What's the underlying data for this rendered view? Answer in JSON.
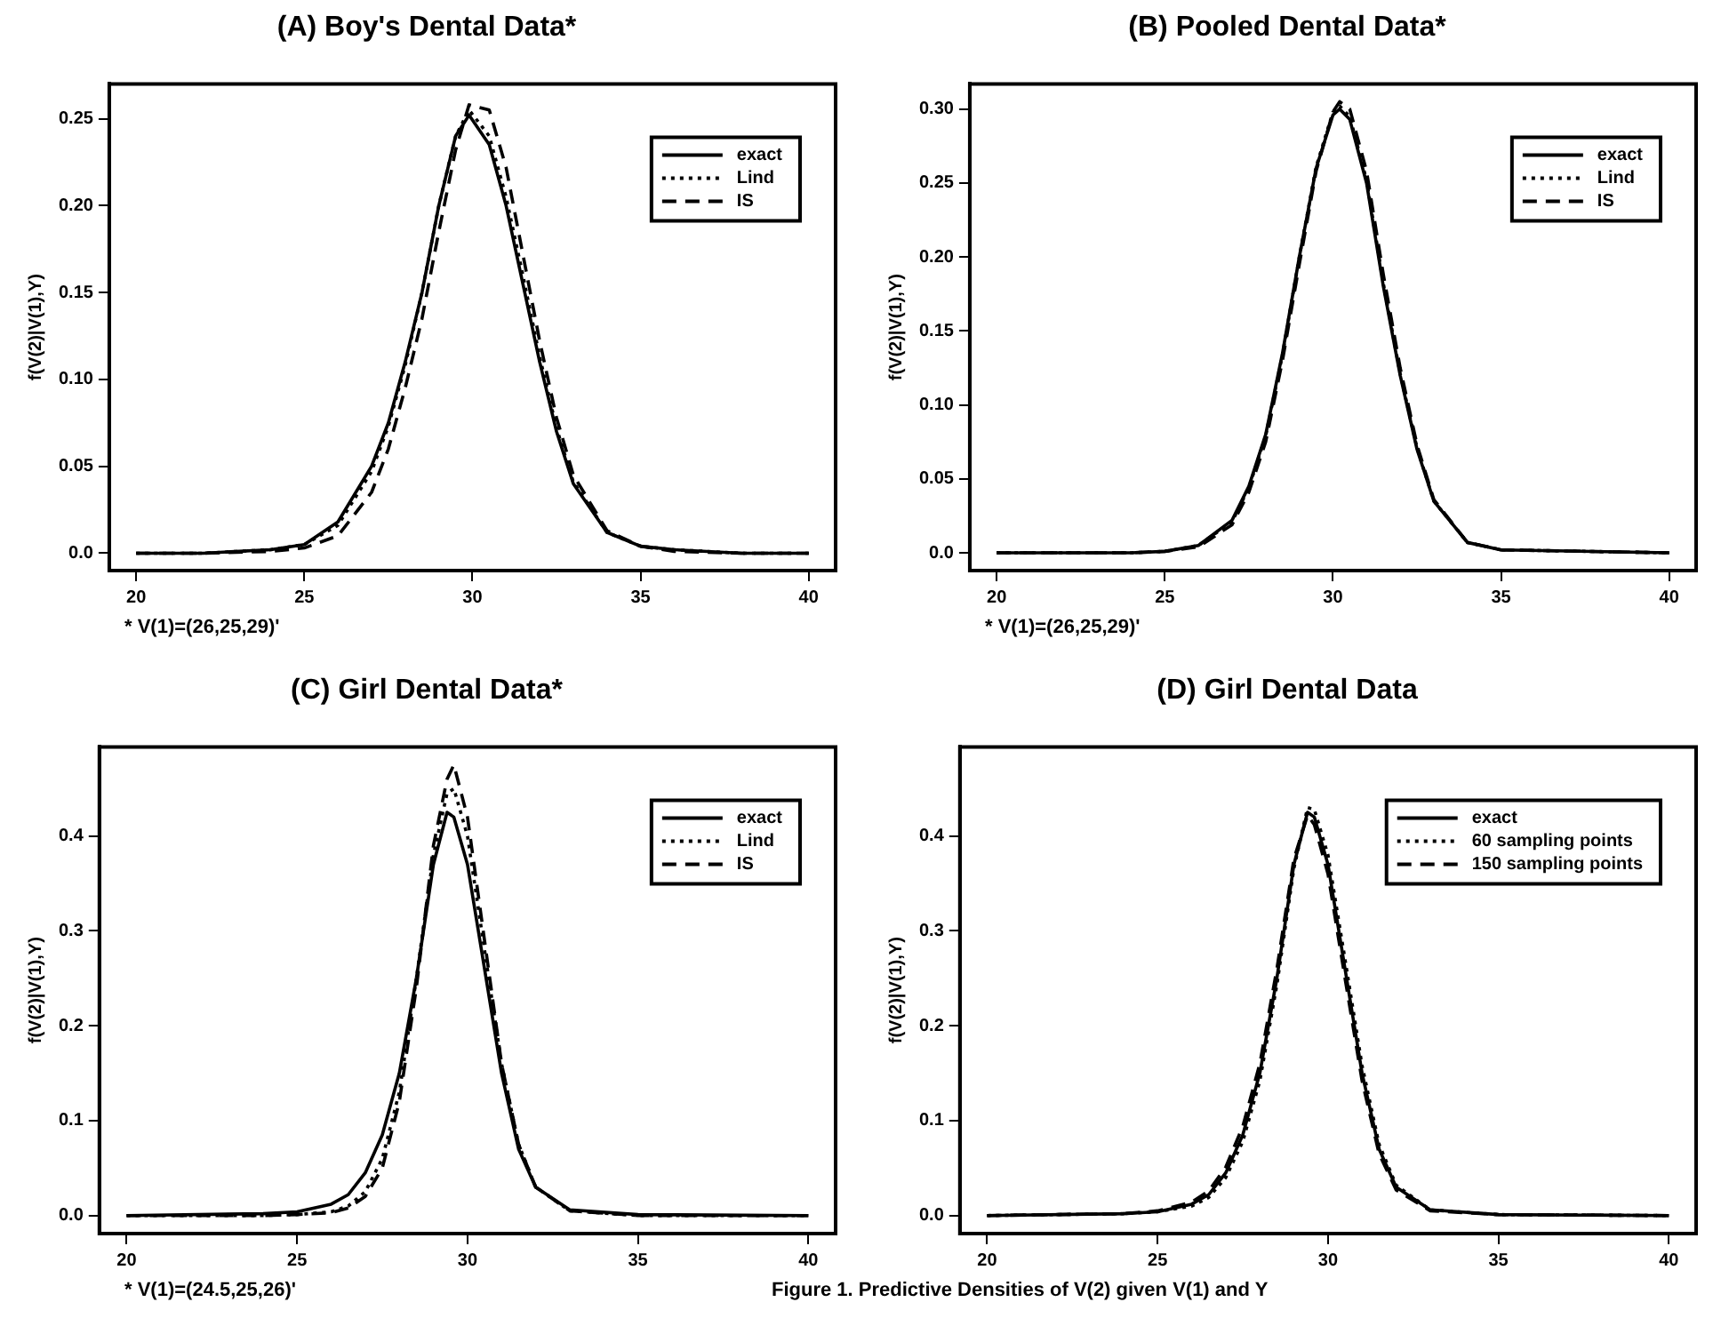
{
  "chart_data": [
    {
      "type": "line",
      "title": "(A) Boy's Dental Data*",
      "ylabel": "f(V(2)|V(1),Y)",
      "annotations": [
        "* V(1)=(26,25,29)'"
      ],
      "legend": "top right",
      "grid": false,
      "marker": "none",
      "x": [
        20,
        22,
        24,
        25,
        26,
        27,
        27.5,
        28,
        28.5,
        29,
        29.5,
        29.9,
        30.5,
        31,
        31.5,
        32,
        32.5,
        33,
        34,
        35,
        36,
        38,
        40
      ],
      "xlim": [
        19.2,
        40.8
      ],
      "xticks": [
        20,
        25,
        30,
        35,
        40
      ],
      "ylim": [
        -0.01,
        0.27
      ],
      "yticks": [
        {
          "value": 0,
          "label": "0.0"
        },
        0.05,
        {
          "value": 0.1,
          "label": "0.10"
        },
        0.15,
        {
          "value": 0.2,
          "label": "0.20"
        },
        0.25
      ],
      "series": [
        {
          "name": "exact",
          "color": "#000000",
          "line_style": "solid",
          "values": [
            0,
            0,
            0.002,
            0.005,
            0.018,
            0.05,
            0.075,
            0.11,
            0.15,
            0.2,
            0.24,
            0.252,
            0.235,
            0.2,
            0.155,
            0.11,
            0.07,
            0.04,
            0.012,
            0.004,
            0.002,
            0,
            0
          ]
        },
        {
          "name": "Lind",
          "color": "#000000",
          "line_style": "dotted",
          "values": [
            0,
            0,
            0.002,
            0.005,
            0.016,
            0.047,
            0.073,
            0.108,
            0.15,
            0.2,
            0.24,
            0.255,
            0.24,
            0.205,
            0.16,
            0.113,
            0.072,
            0.041,
            0.012,
            0.004,
            0.002,
            0,
            0
          ]
        },
        {
          "name": "IS",
          "color": "#000000",
          "line_style": "dashed",
          "values": [
            0,
            0,
            0.001,
            0.003,
            0.01,
            0.035,
            0.06,
            0.095,
            0.135,
            0.185,
            0.232,
            0.258,
            0.255,
            0.222,
            0.172,
            0.122,
            0.078,
            0.045,
            0.013,
            0.004,
            0.001,
            0,
            0
          ]
        }
      ]
    },
    {
      "type": "line",
      "title": "(B) Pooled Dental Data*",
      "ylabel": "f(V(2)|V(1),Y)",
      "annotations": [
        "* V(1)=(26,25,29)'"
      ],
      "legend": "top right",
      "grid": false,
      "marker": "none",
      "x": [
        20,
        24,
        25,
        26,
        27,
        27.5,
        28,
        28.5,
        29,
        29.5,
        30,
        30.2,
        30.5,
        31,
        31.5,
        32,
        32.5,
        33,
        34,
        35,
        40
      ],
      "xlim": [
        19.2,
        40.8
      ],
      "xticks": [
        20,
        25,
        30,
        35,
        40
      ],
      "ylim": [
        -0.012,
        0.317
      ],
      "yticks": [
        {
          "value": 0,
          "label": "0.0"
        },
        0.05,
        {
          "value": 0.1,
          "label": "0.10"
        },
        0.15,
        {
          "value": 0.2,
          "label": "0.20"
        },
        0.25,
        {
          "value": 0.3,
          "label": "0.30"
        }
      ],
      "series": [
        {
          "name": "exact",
          "color": "#000000",
          "line_style": "solid",
          "values": [
            0,
            0,
            0.001,
            0.005,
            0.022,
            0.045,
            0.08,
            0.135,
            0.2,
            0.26,
            0.296,
            0.3,
            0.293,
            0.25,
            0.18,
            0.12,
            0.07,
            0.035,
            0.007,
            0.002,
            0
          ]
        },
        {
          "name": "Lind",
          "color": "#000000",
          "line_style": "dotted",
          "values": [
            0,
            0,
            0.001,
            0.005,
            0.021,
            0.044,
            0.079,
            0.134,
            0.2,
            0.261,
            0.298,
            0.302,
            0.295,
            0.252,
            0.182,
            0.121,
            0.071,
            0.035,
            0.007,
            0.002,
            0
          ]
        },
        {
          "name": "IS",
          "color": "#000000",
          "line_style": "dashed",
          "values": [
            0,
            0,
            0.001,
            0.004,
            0.019,
            0.041,
            0.075,
            0.13,
            0.195,
            0.258,
            0.298,
            0.305,
            0.3,
            0.258,
            0.188,
            0.125,
            0.073,
            0.036,
            0.007,
            0.002,
            0
          ]
        }
      ]
    },
    {
      "type": "line",
      "title": "(C) Girl Dental Data*",
      "ylabel": "f(V(2)|V(1),Y)",
      "annotations": [
        "* V(1)=(24.5,25,26)'"
      ],
      "legend": "top right",
      "grid": false,
      "marker": "none",
      "x": [
        20,
        24,
        25,
        26,
        26.5,
        27,
        27.5,
        28,
        28.5,
        29,
        29.4,
        29.6,
        30,
        30.5,
        31,
        31.5,
        32,
        33,
        35,
        40
      ],
      "xlim": [
        19.2,
        40.8
      ],
      "xticks": [
        20,
        25,
        30,
        35,
        40
      ],
      "ylim": [
        -0.019,
        0.494
      ],
      "yticks": [
        {
          "value": 0,
          "label": "0.0"
        },
        0.1,
        0.2,
        0.3,
        0.4
      ],
      "series": [
        {
          "name": "exact",
          "color": "#000000",
          "line_style": "solid",
          "values": [
            0,
            0.002,
            0.004,
            0.012,
            0.022,
            0.045,
            0.085,
            0.15,
            0.25,
            0.37,
            0.425,
            0.42,
            0.37,
            0.26,
            0.15,
            0.07,
            0.03,
            0.006,
            0.001,
            0
          ]
        },
        {
          "name": "Lind",
          "color": "#000000",
          "line_style": "dotted",
          "values": [
            0,
            0,
            0.001,
            0.004,
            0.01,
            0.025,
            0.06,
            0.13,
            0.25,
            0.38,
            0.445,
            0.45,
            0.4,
            0.28,
            0.16,
            0.075,
            0.03,
            0.005,
            0,
            0
          ]
        },
        {
          "name": "IS",
          "color": "#000000",
          "line_style": "dashed",
          "values": [
            0,
            0,
            0.001,
            0.003,
            0.008,
            0.02,
            0.05,
            0.12,
            0.24,
            0.39,
            0.46,
            0.475,
            0.42,
            0.29,
            0.16,
            0.075,
            0.03,
            0.005,
            0,
            0
          ]
        }
      ]
    },
    {
      "type": "line",
      "title": "(D) Girl Dental Data",
      "ylabel": "f(V(2)|V(1),Y)",
      "annotations": [
        "Figure 1.  Predictive Densities of V(2) given V(1) and Y"
      ],
      "legend": "top right",
      "grid": false,
      "marker": "none",
      "x": [
        20,
        24,
        25,
        26,
        26.5,
        27,
        27.5,
        28,
        28.5,
        29,
        29.4,
        29.6,
        30,
        30.5,
        31,
        31.5,
        32,
        33,
        35,
        40
      ],
      "xlim": [
        19.2,
        40.8
      ],
      "xticks": [
        20,
        25,
        30,
        35,
        40
      ],
      "ylim": [
        -0.019,
        0.494
      ],
      "yticks": [
        {
          "value": 0,
          "label": "0.0"
        },
        0.1,
        0.2,
        0.3,
        0.4
      ],
      "series": [
        {
          "name": "exact",
          "color": "#000000",
          "line_style": "solid",
          "values": [
            0,
            0.002,
            0.004,
            0.012,
            0.022,
            0.045,
            0.085,
            0.15,
            0.25,
            0.37,
            0.425,
            0.42,
            0.37,
            0.26,
            0.15,
            0.07,
            0.03,
            0.006,
            0.001,
            0
          ]
        },
        {
          "name": "60 sampling points",
          "color": "#000000",
          "line_style": "dotted",
          "values": [
            0,
            0.002,
            0.004,
            0.01,
            0.019,
            0.04,
            0.078,
            0.142,
            0.243,
            0.366,
            0.43,
            0.428,
            0.38,
            0.27,
            0.158,
            0.075,
            0.032,
            0.006,
            0.001,
            0
          ]
        },
        {
          "name": "150 sampling points",
          "color": "#000000",
          "line_style": "dashed",
          "values": [
            0,
            0.002,
            0.005,
            0.014,
            0.026,
            0.051,
            0.094,
            0.16,
            0.26,
            0.376,
            0.422,
            0.412,
            0.36,
            0.25,
            0.142,
            0.065,
            0.027,
            0.005,
            0.001,
            0
          ]
        }
      ]
    }
  ]
}
